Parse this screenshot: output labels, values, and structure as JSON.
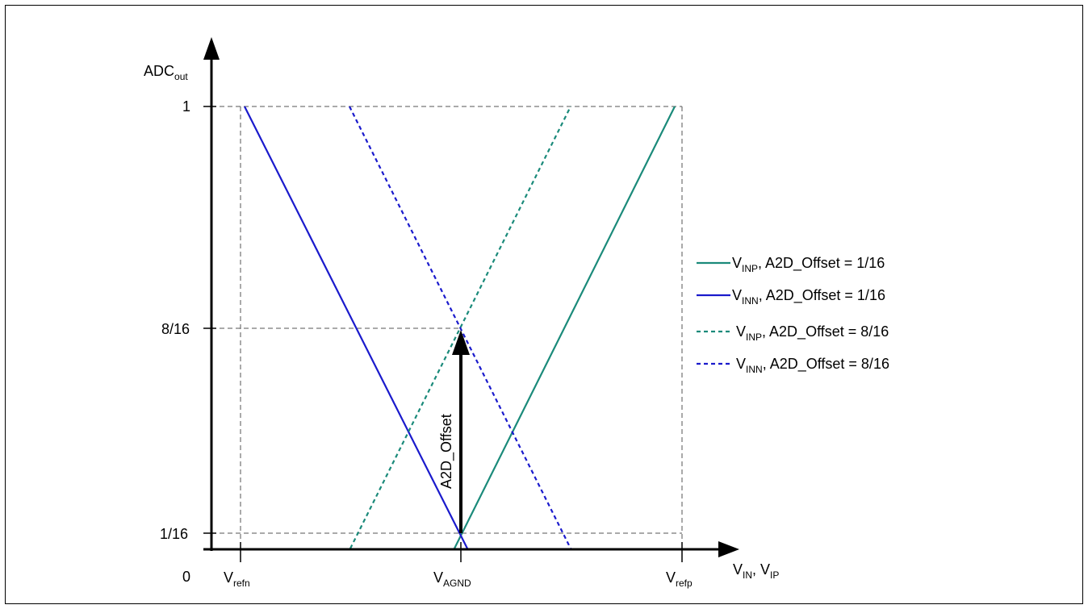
{
  "colors": {
    "teal": "#1a8a7a",
    "blue": "#1a1acc",
    "black": "#000000",
    "grid": "#555555"
  },
  "axes": {
    "y_label_main": "ADC",
    "y_label_sub": "out",
    "y_tick_top": "1",
    "y_tick_mid": "8/16",
    "y_tick_bottom": "1/16",
    "origin": "0",
    "x_label": {
      "v1": "V",
      "s1": "IN",
      "sep": ", V",
      "s2": "IP"
    },
    "x_ticks": [
      {
        "main": "V",
        "sub": "refn"
      },
      {
        "main": "V",
        "sub": "AGND"
      },
      {
        "main": "V",
        "sub": "refp"
      }
    ]
  },
  "annotation": {
    "label": "A2D_Offset"
  },
  "legend": [
    {
      "v": "V",
      "sub": "INP",
      "text": ", A2D_Offset = 1/16",
      "color": "#1a8a7a",
      "style": "solid",
      "icon": "teal-solid-line-icon"
    },
    {
      "v": "V",
      "sub": "INN",
      "text": ", A2D_Offset = 1/16",
      "color": "#1a1acc",
      "style": "solid",
      "icon": "blue-solid-line-icon"
    },
    {
      "v": "V",
      "sub": "INP",
      "text": ", A2D_Offset = 8/16",
      "color": "#1a8a7a",
      "style": "dotted",
      "icon": "teal-dotted-line-icon"
    },
    {
      "v": "V",
      "sub": "INN",
      "text": ", A2D_Offset = 8/16",
      "color": "#1a1acc",
      "style": "dotted",
      "icon": "blue-dotted-line-icon"
    }
  ]
}
